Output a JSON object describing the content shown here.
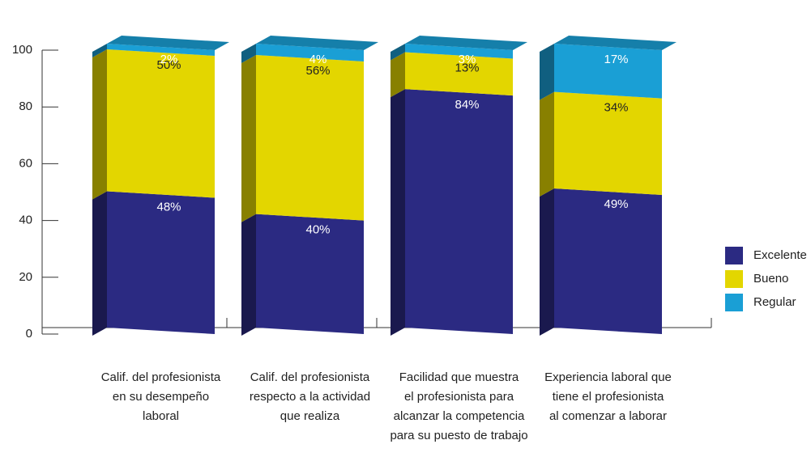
{
  "chart_data": {
    "type": "stacked-bar-3d",
    "categories": [
      [
        "Calif. del profesionista",
        "en su desempeño",
        "laboral"
      ],
      [
        "Calif. del profesionista",
        "respecto a la actividad",
        "que realiza"
      ],
      [
        "Facilidad que muestra",
        "el profesionista para",
        "alcanzar la competencia",
        "para su puesto de trabajo"
      ],
      [
        "Experiencia laboral que",
        "tiene el profesionista",
        "al comenzar a laborar"
      ]
    ],
    "series": [
      {
        "name": "Excelente",
        "color": "#2b2a82",
        "values": [
          48,
          40,
          84,
          49
        ],
        "value_labels": [
          "48%",
          "40%",
          "84%",
          "49%"
        ]
      },
      {
        "name": "Bueno",
        "color": "#e3d600",
        "values": [
          50,
          56,
          13,
          34
        ],
        "value_labels": [
          "50%",
          "56%",
          "13%",
          "34%"
        ]
      },
      {
        "name": "Regular",
        "color": "#1a9fd5",
        "values": [
          2,
          4,
          3,
          17
        ],
        "value_labels": [
          "2%",
          "4%",
          "3%",
          "17%"
        ]
      }
    ],
    "ylim": [
      0,
      100
    ],
    "yticks": [
      0,
      20,
      40,
      60,
      80,
      100
    ],
    "legend": "right"
  }
}
